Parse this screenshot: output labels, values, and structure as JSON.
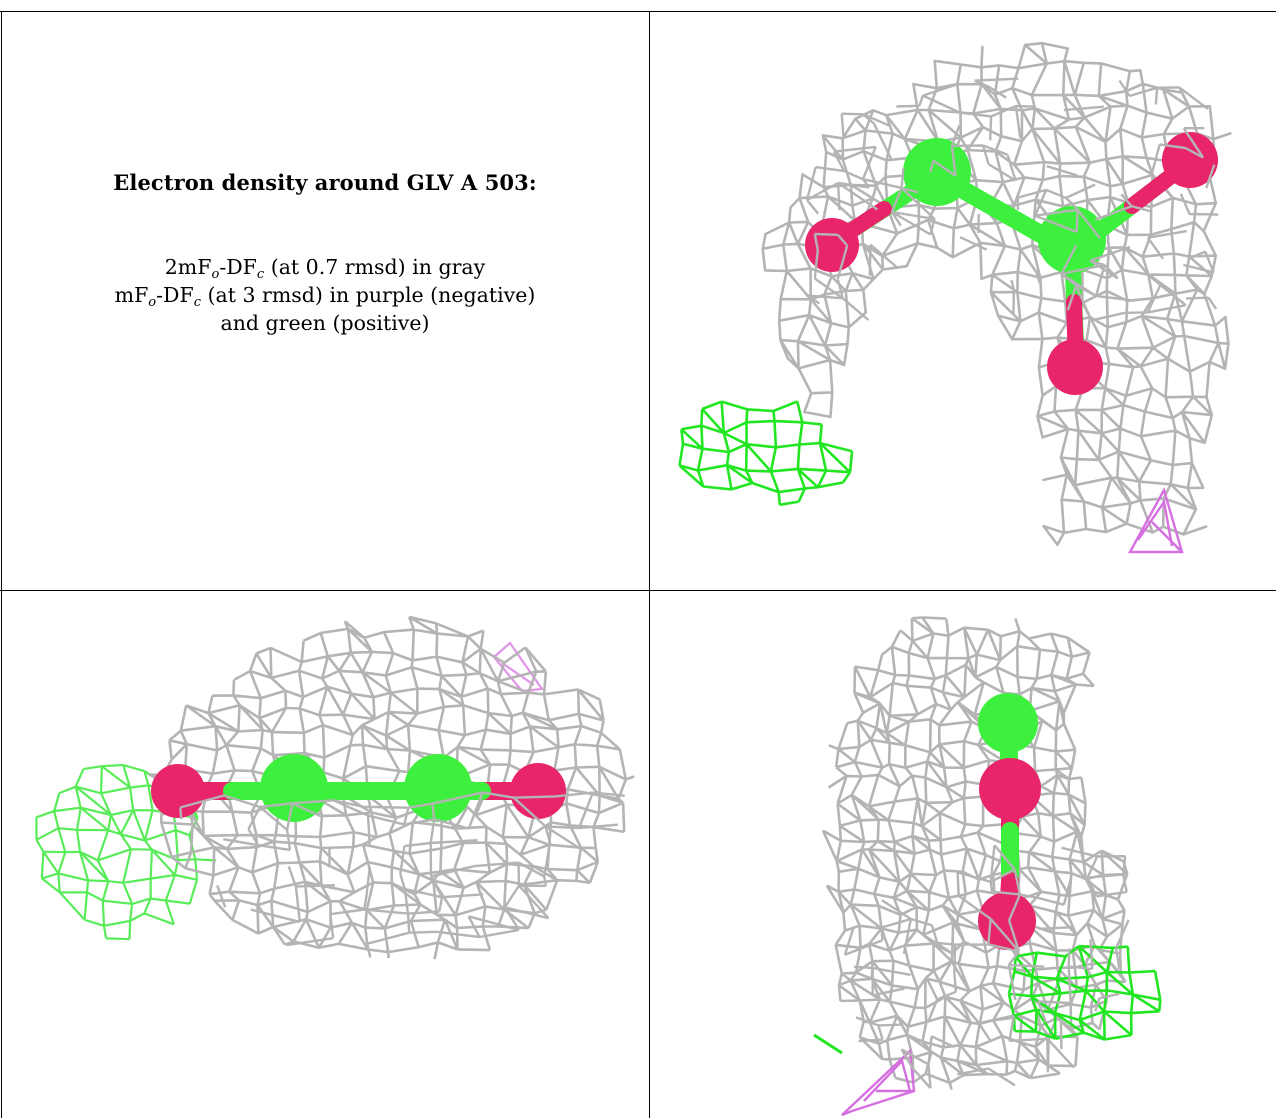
{
  "caption": {
    "title": "Electron density around GLV A 503:",
    "line1_a": "2mF",
    "line1_sub1": "o",
    "line1_b": "-DF",
    "line1_sub2": "c",
    "line1_c": " (at 0.7 rmsd) in gray",
    "line2_a": "mF",
    "line2_sub1": "o",
    "line2_b": "-DF",
    "line2_sub2": "c",
    "line2_c": " (at 3 rmsd) in purple (negative)",
    "line3": "and green (positive)"
  },
  "colors": {
    "mesh_2fofc": "#b4b4b4",
    "mesh_positive": "#22e622",
    "mesh_negative": "#d670e0",
    "carbon": "#3ef03e",
    "oxygen": "#e8246a"
  },
  "views": [
    "top-right",
    "bottom-left",
    "bottom-right"
  ]
}
